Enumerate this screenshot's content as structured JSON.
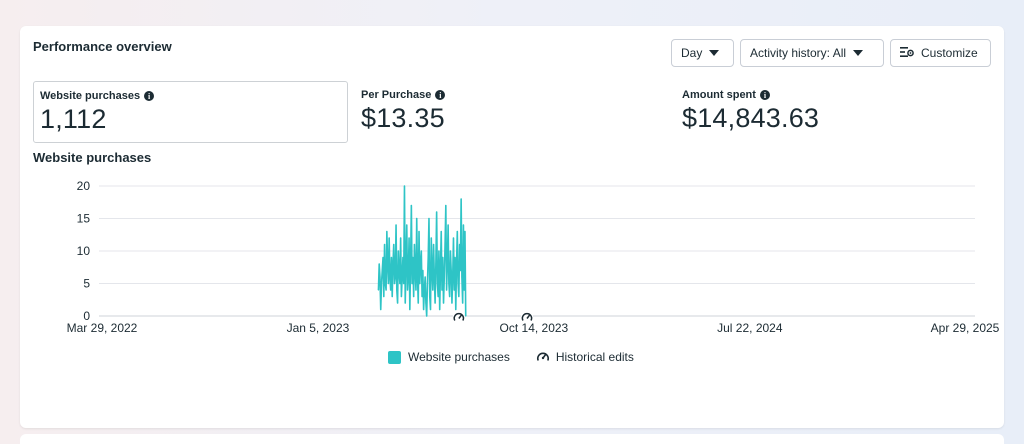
{
  "panel": {
    "title": "Performance overview",
    "controls": {
      "period_label": "Day",
      "activity_label": "Activity history: All",
      "customize_label": "Customize"
    }
  },
  "metrics": [
    {
      "label": "Website purchases",
      "value": "1,112",
      "selected": true
    },
    {
      "label": "Per Purchase",
      "value": "$13.35",
      "selected": false
    },
    {
      "label": "Amount spent",
      "value": "$14,843.63",
      "selected": false
    }
  ],
  "chart_title": "Website purchases",
  "legend": {
    "series_label": "Website purchases",
    "edits_label": "Historical edits"
  },
  "colors": {
    "series": "#2ec4c6",
    "grid": "#e4e6eb",
    "text": "#1c2b33"
  },
  "chart_data": {
    "type": "line",
    "title": "",
    "xlabel": "",
    "ylabel": "",
    "ylim": [
      0,
      20
    ],
    "yticks": [
      0,
      5,
      10,
      15,
      20
    ],
    "xlim": [
      "2022-03-29",
      "2025-04-29"
    ],
    "xticks": [
      "Mar 29, 2022",
      "Jan 5, 2023",
      "Oct 14, 2023",
      "Jul 22, 2024",
      "Apr 29, 2025"
    ],
    "xtick_dates": [
      "2022-03-29",
      "2023-01-05",
      "2023-10-14",
      "2024-07-22",
      "2025-04-29"
    ],
    "grid": true,
    "legend_position": "bottom",
    "series": [
      {
        "name": "Website purchases",
        "start_date": "2023-03-25",
        "values": [
          4,
          8,
          6,
          1,
          5,
          7,
          9,
          3,
          11,
          5,
          4,
          13,
          8,
          5,
          12,
          6,
          4,
          9,
          3,
          8,
          11,
          5,
          6,
          14,
          4,
          2,
          10,
          7,
          5,
          12,
          3,
          6,
          9,
          5,
          20,
          2,
          8,
          14,
          4,
          6,
          12,
          1,
          8,
          17,
          5,
          9,
          3,
          11,
          7,
          4,
          15,
          6,
          2,
          13,
          5,
          8,
          10,
          3,
          7,
          1,
          4,
          6,
          2,
          0,
          5,
          9,
          15,
          3,
          1,
          12,
          7,
          4,
          11,
          6,
          2,
          8,
          16,
          5,
          3,
          10,
          1,
          7,
          13,
          4,
          9,
          2,
          6,
          11,
          17,
          4,
          8,
          14,
          5,
          3,
          10,
          7,
          2,
          6,
          12,
          4,
          9,
          1,
          8,
          13,
          5,
          3,
          11,
          7,
          18,
          6,
          2,
          14,
          4,
          13,
          0
        ]
      }
    ],
    "historical_edits_dates": [
      "2023-07-08",
      "2023-10-05"
    ]
  }
}
